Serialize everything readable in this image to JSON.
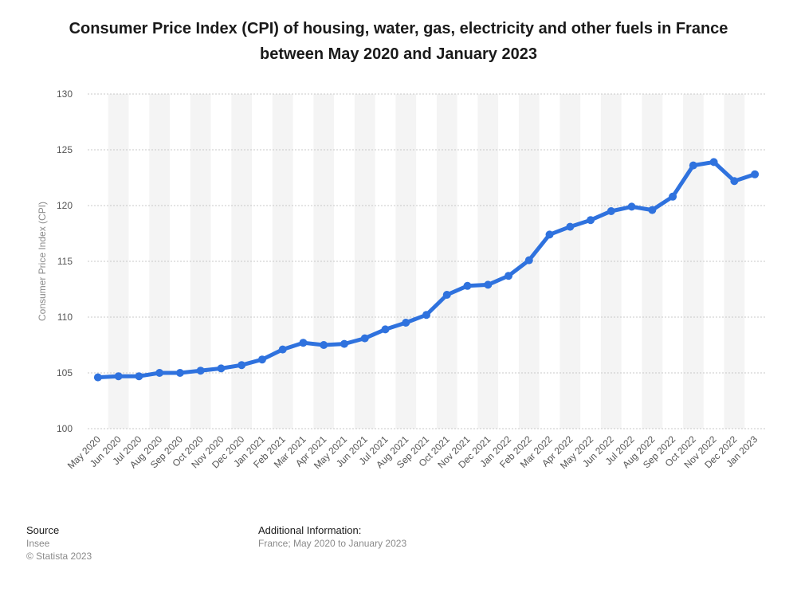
{
  "chart_data": {
    "type": "line",
    "title": "Consumer Price Index (CPI) of housing, water, gas, electricity and other fuels in France between May 2020 and January 2023",
    "xlabel": "",
    "ylabel": "Consumer Price Index (CPI)",
    "ylim": [
      100,
      130
    ],
    "yticks": [
      100,
      105,
      110,
      115,
      120,
      125,
      130
    ],
    "grid": true,
    "categories": [
      "May 2020",
      "Jun 2020",
      "Jul 2020",
      "Aug 2020",
      "Sep 2020",
      "Oct 2020",
      "Nov 2020",
      "Dec 2020",
      "Jan 2021",
      "Feb 2021",
      "Mar 2021",
      "Apr 2021",
      "May 2021",
      "Jun 2021",
      "Jul 2021",
      "Aug 2021",
      "Sep 2021",
      "Oct 2021",
      "Nov 2021",
      "Dec 2021",
      "Jan 2022",
      "Feb 2022",
      "Mar 2022",
      "Apr 2022",
      "May 2022",
      "Jun 2022",
      "Jul 2022",
      "Aug 2022",
      "Sep 2022",
      "Oct 2022",
      "Nov 2022",
      "Dec 2022",
      "Jan 2023"
    ],
    "values": [
      104.6,
      104.7,
      104.7,
      105.0,
      105.0,
      105.2,
      105.4,
      105.7,
      106.2,
      107.1,
      107.7,
      107.5,
      107.6,
      108.1,
      108.9,
      109.5,
      110.2,
      112.0,
      112.8,
      112.9,
      113.7,
      115.1,
      117.4,
      118.1,
      118.7,
      119.5,
      119.9,
      119.6,
      120.8,
      123.6,
      123.9,
      122.2,
      122.8
    ],
    "line_color": "#2f72de",
    "band_color": "#f4f4f4"
  },
  "footer": {
    "source_heading": "Source",
    "source": "Insee",
    "copyright": "© Statista 2023",
    "additional_heading": "Additional Information:",
    "additional": "France; May 2020 to January 2023"
  }
}
